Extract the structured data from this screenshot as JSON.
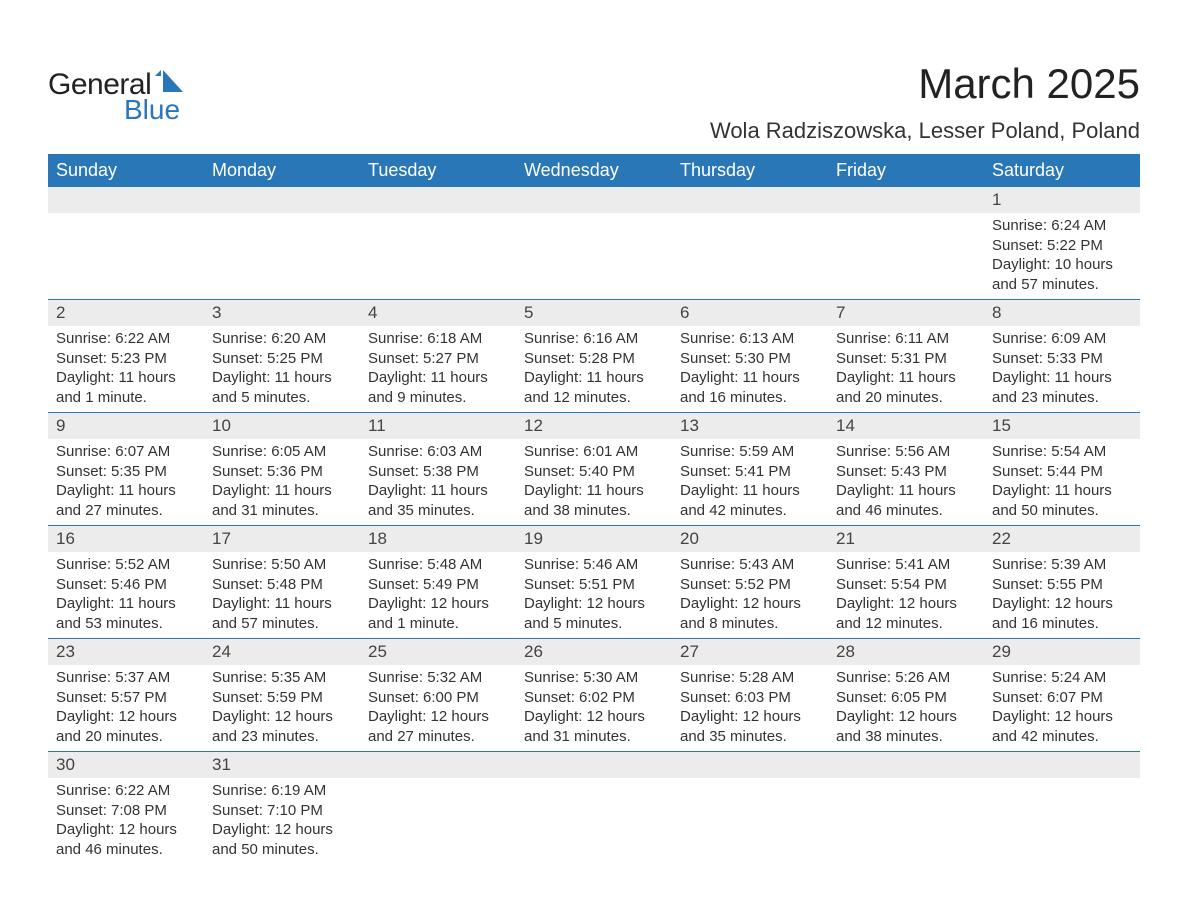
{
  "logo": {
    "line1": "General",
    "line2": "Blue",
    "mark_color": "#2a77b8"
  },
  "title": "March 2025",
  "location": "Wola Radziszowska, Lesser Poland, Poland",
  "colors": {
    "header_bg": "#2a77b8",
    "header_text": "#ffffff",
    "daynum_bg": "#ececec",
    "row_border": "#2a77b8",
    "body_text": "#333333",
    "page_bg": "#ffffff"
  },
  "day_headers": [
    "Sunday",
    "Monday",
    "Tuesday",
    "Wednesday",
    "Thursday",
    "Friday",
    "Saturday"
  ],
  "weeks": [
    {
      "nums": [
        "",
        "",
        "",
        "",
        "",
        "",
        "1"
      ],
      "cells": [
        null,
        null,
        null,
        null,
        null,
        null,
        {
          "sunrise": "Sunrise: 6:24 AM",
          "sunset": "Sunset: 5:22 PM",
          "daylight": "Daylight: 10 hours and 57 minutes."
        }
      ]
    },
    {
      "nums": [
        "2",
        "3",
        "4",
        "5",
        "6",
        "7",
        "8"
      ],
      "cells": [
        {
          "sunrise": "Sunrise: 6:22 AM",
          "sunset": "Sunset: 5:23 PM",
          "daylight": "Daylight: 11 hours and 1 minute."
        },
        {
          "sunrise": "Sunrise: 6:20 AM",
          "sunset": "Sunset: 5:25 PM",
          "daylight": "Daylight: 11 hours and 5 minutes."
        },
        {
          "sunrise": "Sunrise: 6:18 AM",
          "sunset": "Sunset: 5:27 PM",
          "daylight": "Daylight: 11 hours and 9 minutes."
        },
        {
          "sunrise": "Sunrise: 6:16 AM",
          "sunset": "Sunset: 5:28 PM",
          "daylight": "Daylight: 11 hours and 12 minutes."
        },
        {
          "sunrise": "Sunrise: 6:13 AM",
          "sunset": "Sunset: 5:30 PM",
          "daylight": "Daylight: 11 hours and 16 minutes."
        },
        {
          "sunrise": "Sunrise: 6:11 AM",
          "sunset": "Sunset: 5:31 PM",
          "daylight": "Daylight: 11 hours and 20 minutes."
        },
        {
          "sunrise": "Sunrise: 6:09 AM",
          "sunset": "Sunset: 5:33 PM",
          "daylight": "Daylight: 11 hours and 23 minutes."
        }
      ]
    },
    {
      "nums": [
        "9",
        "10",
        "11",
        "12",
        "13",
        "14",
        "15"
      ],
      "cells": [
        {
          "sunrise": "Sunrise: 6:07 AM",
          "sunset": "Sunset: 5:35 PM",
          "daylight": "Daylight: 11 hours and 27 minutes."
        },
        {
          "sunrise": "Sunrise: 6:05 AM",
          "sunset": "Sunset: 5:36 PM",
          "daylight": "Daylight: 11 hours and 31 minutes."
        },
        {
          "sunrise": "Sunrise: 6:03 AM",
          "sunset": "Sunset: 5:38 PM",
          "daylight": "Daylight: 11 hours and 35 minutes."
        },
        {
          "sunrise": "Sunrise: 6:01 AM",
          "sunset": "Sunset: 5:40 PM",
          "daylight": "Daylight: 11 hours and 38 minutes."
        },
        {
          "sunrise": "Sunrise: 5:59 AM",
          "sunset": "Sunset: 5:41 PM",
          "daylight": "Daylight: 11 hours and 42 minutes."
        },
        {
          "sunrise": "Sunrise: 5:56 AM",
          "sunset": "Sunset: 5:43 PM",
          "daylight": "Daylight: 11 hours and 46 minutes."
        },
        {
          "sunrise": "Sunrise: 5:54 AM",
          "sunset": "Sunset: 5:44 PM",
          "daylight": "Daylight: 11 hours and 50 minutes."
        }
      ]
    },
    {
      "nums": [
        "16",
        "17",
        "18",
        "19",
        "20",
        "21",
        "22"
      ],
      "cells": [
        {
          "sunrise": "Sunrise: 5:52 AM",
          "sunset": "Sunset: 5:46 PM",
          "daylight": "Daylight: 11 hours and 53 minutes."
        },
        {
          "sunrise": "Sunrise: 5:50 AM",
          "sunset": "Sunset: 5:48 PM",
          "daylight": "Daylight: 11 hours and 57 minutes."
        },
        {
          "sunrise": "Sunrise: 5:48 AM",
          "sunset": "Sunset: 5:49 PM",
          "daylight": "Daylight: 12 hours and 1 minute."
        },
        {
          "sunrise": "Sunrise: 5:46 AM",
          "sunset": "Sunset: 5:51 PM",
          "daylight": "Daylight: 12 hours and 5 minutes."
        },
        {
          "sunrise": "Sunrise: 5:43 AM",
          "sunset": "Sunset: 5:52 PM",
          "daylight": "Daylight: 12 hours and 8 minutes."
        },
        {
          "sunrise": "Sunrise: 5:41 AM",
          "sunset": "Sunset: 5:54 PM",
          "daylight": "Daylight: 12 hours and 12 minutes."
        },
        {
          "sunrise": "Sunrise: 5:39 AM",
          "sunset": "Sunset: 5:55 PM",
          "daylight": "Daylight: 12 hours and 16 minutes."
        }
      ]
    },
    {
      "nums": [
        "23",
        "24",
        "25",
        "26",
        "27",
        "28",
        "29"
      ],
      "cells": [
        {
          "sunrise": "Sunrise: 5:37 AM",
          "sunset": "Sunset: 5:57 PM",
          "daylight": "Daylight: 12 hours and 20 minutes."
        },
        {
          "sunrise": "Sunrise: 5:35 AM",
          "sunset": "Sunset: 5:59 PM",
          "daylight": "Daylight: 12 hours and 23 minutes."
        },
        {
          "sunrise": "Sunrise: 5:32 AM",
          "sunset": "Sunset: 6:00 PM",
          "daylight": "Daylight: 12 hours and 27 minutes."
        },
        {
          "sunrise": "Sunrise: 5:30 AM",
          "sunset": "Sunset: 6:02 PM",
          "daylight": "Daylight: 12 hours and 31 minutes."
        },
        {
          "sunrise": "Sunrise: 5:28 AM",
          "sunset": "Sunset: 6:03 PM",
          "daylight": "Daylight: 12 hours and 35 minutes."
        },
        {
          "sunrise": "Sunrise: 5:26 AM",
          "sunset": "Sunset: 6:05 PM",
          "daylight": "Daylight: 12 hours and 38 minutes."
        },
        {
          "sunrise": "Sunrise: 5:24 AM",
          "sunset": "Sunset: 6:07 PM",
          "daylight": "Daylight: 12 hours and 42 minutes."
        }
      ]
    },
    {
      "nums": [
        "30",
        "31",
        "",
        "",
        "",
        "",
        ""
      ],
      "cells": [
        {
          "sunrise": "Sunrise: 6:22 AM",
          "sunset": "Sunset: 7:08 PM",
          "daylight": "Daylight: 12 hours and 46 minutes."
        },
        {
          "sunrise": "Sunrise: 6:19 AM",
          "sunset": "Sunset: 7:10 PM",
          "daylight": "Daylight: 12 hours and 50 minutes."
        },
        null,
        null,
        null,
        null,
        null
      ]
    }
  ]
}
